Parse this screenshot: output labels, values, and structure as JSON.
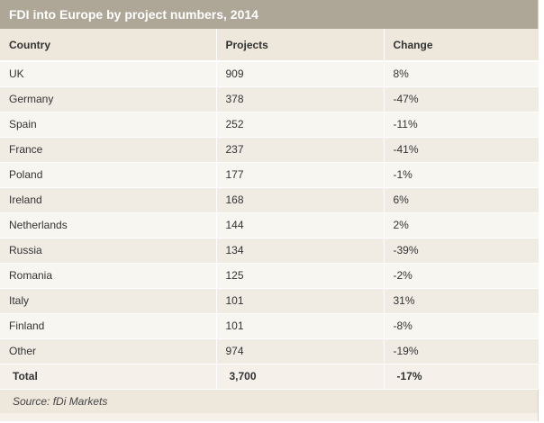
{
  "title": "FDI into Europe by project numbers, 2014",
  "chart_data": {
    "type": "table",
    "title": "FDI into Europe by project numbers, 2014",
    "columns": [
      "Country",
      "Projects",
      "Change"
    ],
    "rows": [
      [
        "UK",
        "909",
        "8%"
      ],
      [
        "Germany",
        "378",
        "-47%"
      ],
      [
        "Spain",
        "252",
        "-11%"
      ],
      [
        "France",
        "237",
        "-41%"
      ],
      [
        "Poland",
        "177",
        "-1%"
      ],
      [
        "Ireland",
        "168",
        "6%"
      ],
      [
        "Netherlands",
        "144",
        "2%"
      ],
      [
        "Russia",
        "134",
        "-39%"
      ],
      [
        "Romania",
        "125",
        "-2%"
      ],
      [
        "Italy",
        "101",
        "31%"
      ],
      [
        "Finland",
        "101",
        "-8%"
      ],
      [
        "Other",
        "974",
        "-19%"
      ]
    ],
    "total": [
      "Total",
      "3,700",
      "-17%"
    ],
    "source": "Source: fDi Markets"
  }
}
